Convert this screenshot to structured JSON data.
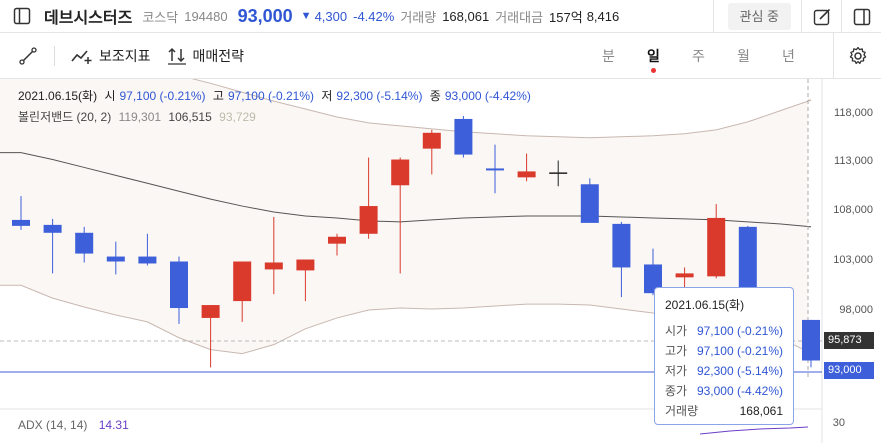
{
  "header": {
    "stock_name": "데브시스터즈",
    "market": "코스닥",
    "code": "194480",
    "price": "93,000",
    "change_arrow": "▼",
    "change": "4,300",
    "change_pct": "-4.42%",
    "volume_label": "거래량",
    "volume": "168,061",
    "amount_label": "거래대금",
    "amount": "157억",
    "amount2": "8,416",
    "watch_button": "관심 중"
  },
  "toolbar": {
    "indicator_label": "보조지표",
    "trade_label": "매매전략",
    "periods": [
      "분",
      "일",
      "주",
      "월",
      "년"
    ],
    "active_period": "일"
  },
  "info": {
    "date": "2021.06.15(화)",
    "open_label": "시",
    "open": "97,100 (-0.21%)",
    "high_label": "고",
    "high": "97,100 (-0.21%)",
    "low_label": "저",
    "low": "92,300 (-5.14%)",
    "close_label": "종",
    "close": "93,000 (-4.42%)",
    "bb_label": "볼린저밴드 (20, 2)",
    "bb_upper": "119,301",
    "bb_mid": "106,515",
    "bb_lower": "93,729",
    "adx_label": "ADX (14, 14)",
    "adx_value": "14.31"
  },
  "tooltip": {
    "date": "2021.06.15(화)",
    "rows": [
      {
        "label": "시가",
        "value": "97,100 (-0.21%)"
      },
      {
        "label": "고가",
        "value": "97,100 (-0.21%)"
      },
      {
        "label": "저가",
        "value": "92,300 (-5.14%)"
      },
      {
        "label": "종가",
        "value": "93,000 (-4.42%)"
      },
      {
        "label": "거래량",
        "value": "168,061"
      }
    ]
  },
  "price_axis": {
    "labels": [
      "118,000",
      "113,000",
      "108,000",
      "103,000",
      "98,000"
    ],
    "crosshair_price": "95,873",
    "last_price": "93,000",
    "adx_axis": "30"
  },
  "colors": {
    "up": "#d93a2b",
    "down": "#3d5fd9",
    "band_fill": "#fbf7f5",
    "accent": "#3056d3"
  },
  "chart_data": {
    "type": "candlestick",
    "ylim": [
      93000,
      120000
    ],
    "candles": [
      {
        "o": 107200,
        "h": 109600,
        "l": 106200,
        "c": 106600
      },
      {
        "o": 106700,
        "h": 107300,
        "l": 101800,
        "c": 105900
      },
      {
        "o": 105900,
        "h": 106500,
        "l": 102900,
        "c": 103800
      },
      {
        "o": 103500,
        "h": 105000,
        "l": 101700,
        "c": 103000
      },
      {
        "o": 103500,
        "h": 105800,
        "l": 102600,
        "c": 102800
      },
      {
        "o": 103000,
        "h": 103500,
        "l": 96700,
        "c": 98300
      },
      {
        "o": 97300,
        "h": 98600,
        "l": 92300,
        "c": 98600
      },
      {
        "o": 99000,
        "h": 103000,
        "l": 96900,
        "c": 103000
      },
      {
        "o": 102200,
        "h": 107500,
        "l": 99700,
        "c": 102900
      },
      {
        "o": 102100,
        "h": 103200,
        "l": 99000,
        "c": 103200
      },
      {
        "o": 104800,
        "h": 105800,
        "l": 103600,
        "c": 105500
      },
      {
        "o": 105800,
        "h": 113500,
        "l": 105300,
        "c": 108600
      },
      {
        "o": 110700,
        "h": 113500,
        "l": 101800,
        "c": 113300
      },
      {
        "o": 114400,
        "h": 116300,
        "l": 111800,
        "c": 116000
      },
      {
        "o": 117400,
        "h": 117700,
        "l": 113500,
        "c": 113800
      },
      {
        "o": 112400,
        "h": 114800,
        "l": 109900,
        "c": 112200
      },
      {
        "o": 111500,
        "h": 113900,
        "l": 111100,
        "c": 112100
      },
      {
        "o": 112000,
        "h": 113200,
        "l": 110600,
        "c": 112000
      },
      {
        "o": 110800,
        "h": 111400,
        "l": 107000,
        "c": 106900
      },
      {
        "o": 106800,
        "h": 107000,
        "l": 99400,
        "c": 102400
      },
      {
        "o": 102700,
        "h": 104300,
        "l": 99600,
        "c": 99800
      },
      {
        "o": 101400,
        "h": 102400,
        "l": 99500,
        "c": 101800
      },
      {
        "o": 101500,
        "h": 108800,
        "l": 101300,
        "c": 107400
      },
      {
        "o": 106500,
        "h": 106600,
        "l": 100000,
        "c": 100000
      },
      {
        "o": 99700,
        "h": 99800,
        "l": 95000,
        "c": 95700
      },
      {
        "o": 97100,
        "h": 97100,
        "l": 92300,
        "c": 93000
      }
    ],
    "bb_upper": [
      125000,
      124600,
      124000,
      123300,
      122500,
      121800,
      121000,
      120100,
      119200,
      118400,
      117600,
      117000,
      116700,
      116400,
      116100,
      115900,
      115700,
      115600,
      115500,
      115600,
      115700,
      115900,
      116300,
      117100,
      118200,
      119301
    ],
    "bb_mid": [
      114000,
      113300,
      112500,
      111700,
      110900,
      110100,
      109300,
      108600,
      108000,
      107600,
      107400,
      107100,
      107000,
      107200,
      107400,
      107500,
      107600,
      107600,
      107600,
      107500,
      107400,
      107300,
      107200,
      107000,
      106800,
      106515
    ],
    "bb_lower": [
      100600,
      99300,
      98400,
      97600,
      96900,
      95300,
      94100,
      93700,
      94600,
      96200,
      97300,
      98100,
      98300,
      98200,
      98300,
      98500,
      98700,
      98700,
      98600,
      98200,
      97800,
      97400,
      97100,
      96500,
      95300,
      93729
    ]
  }
}
